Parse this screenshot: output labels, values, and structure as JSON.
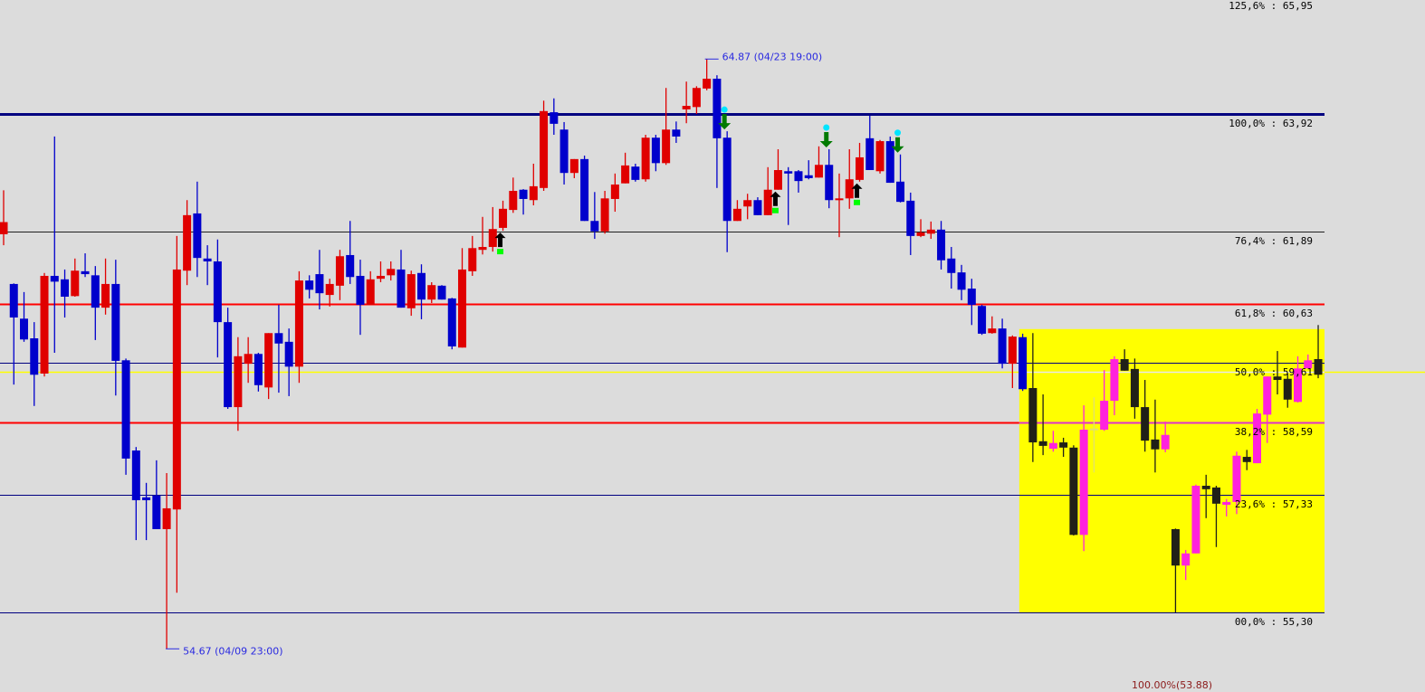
{
  "chart_data": {
    "type": "candlestick",
    "title": "",
    "xlabel": "",
    "ylabel": "",
    "ylim": [
      53.9,
      65.95
    ],
    "grid": false,
    "candle_fields": [
      "open",
      "high",
      "low",
      "close"
    ],
    "candles": [
      [
        61.84,
        62.6,
        61.65,
        62.05
      ],
      [
        60.98,
        60.99,
        59.24,
        60.4
      ],
      [
        60.38,
        60.84,
        59.98,
        60.02
      ],
      [
        60.04,
        60.32,
        58.87,
        59.41
      ],
      [
        59.43,
        61.17,
        59.38,
        61.12
      ],
      [
        61.12,
        63.53,
        59.79,
        61.02
      ],
      [
        61.06,
        61.23,
        60.4,
        60.76
      ],
      [
        60.77,
        61.42,
        60.76,
        61.21
      ],
      [
        61.2,
        61.51,
        61.1,
        61.15
      ],
      [
        61.13,
        61.29,
        60.01,
        60.57
      ],
      [
        60.57,
        61.42,
        60.45,
        60.98
      ],
      [
        60.98,
        61.4,
        59.05,
        59.65
      ],
      [
        59.66,
        59.69,
        57.68,
        57.96
      ],
      [
        58.1,
        58.16,
        56.55,
        57.24
      ],
      [
        57.29,
        57.54,
        56.55,
        57.24
      ],
      [
        57.32,
        57.93,
        56.74,
        56.74
      ],
      [
        56.74,
        57.71,
        54.67,
        57.1
      ],
      [
        57.08,
        61.81,
        55.64,
        61.23
      ],
      [
        61.21,
        62.43,
        60.96,
        62.17
      ],
      [
        62.2,
        62.75,
        61.1,
        61.43
      ],
      [
        61.42,
        61.65,
        60.96,
        61.37
      ],
      [
        61.37,
        61.75,
        59.71,
        60.32
      ],
      [
        60.32,
        60.57,
        58.82,
        58.85
      ],
      [
        58.85,
        60.06,
        58.44,
        59.73
      ],
      [
        59.6,
        60.06,
        59.27,
        59.77
      ],
      [
        59.77,
        59.79,
        59.12,
        59.23
      ],
      [
        59.19,
        60.13,
        58.99,
        60.13
      ],
      [
        60.13,
        60.62,
        59.1,
        59.95
      ],
      [
        59.98,
        60.21,
        59.04,
        59.55
      ],
      [
        59.55,
        61.2,
        59.27,
        61.04
      ],
      [
        61.04,
        61.13,
        60.73,
        60.88
      ],
      [
        61.15,
        61.57,
        60.54,
        60.82
      ],
      [
        60.79,
        61.07,
        60.59,
        60.98
      ],
      [
        60.95,
        61.57,
        60.7,
        61.46
      ],
      [
        61.48,
        62.07,
        60.98,
        61.1
      ],
      [
        61.12,
        61.4,
        60.1,
        60.62
      ],
      [
        60.62,
        61.2,
        60.62,
        61.06
      ],
      [
        61.07,
        61.37,
        61.01,
        61.12
      ],
      [
        61.13,
        61.37,
        61.04,
        61.24
      ],
      [
        61.23,
        61.57,
        60.57,
        60.57
      ],
      [
        60.56,
        61.21,
        60.43,
        61.15
      ],
      [
        61.17,
        61.32,
        60.37,
        60.71
      ],
      [
        60.71,
        61.01,
        60.65,
        60.96
      ],
      [
        60.95,
        60.96,
        60.71,
        60.71
      ],
      [
        60.73,
        60.74,
        59.85,
        59.9
      ],
      [
        59.88,
        61.6,
        59.88,
        61.23
      ],
      [
        61.2,
        61.81,
        61.12,
        61.6
      ],
      [
        61.57,
        62.14,
        61.49,
        61.62
      ],
      [
        61.62,
        62.31,
        61.54,
        61.93
      ],
      [
        61.95,
        62.42,
        61.9,
        62.28
      ],
      [
        62.26,
        62.82,
        62.21,
        62.59
      ],
      [
        62.61,
        62.62,
        62.18,
        62.45
      ],
      [
        62.43,
        63.06,
        62.34,
        62.67
      ],
      [
        62.64,
        64.15,
        62.59,
        63.97
      ],
      [
        63.95,
        64.19,
        63.56,
        63.75
      ],
      [
        63.65,
        63.78,
        62.7,
        62.9
      ],
      [
        62.9,
        63.14,
        62.81,
        63.14
      ],
      [
        63.14,
        63.2,
        62.07,
        62.07
      ],
      [
        62.07,
        62.57,
        61.76,
        61.89
      ],
      [
        61.89,
        62.59,
        61.85,
        62.46
      ],
      [
        62.45,
        62.89,
        62.23,
        62.7
      ],
      [
        62.72,
        63.25,
        62.72,
        63.03
      ],
      [
        63.01,
        63.06,
        62.75,
        62.78
      ],
      [
        62.79,
        63.56,
        62.75,
        63.51
      ],
      [
        63.51,
        63.56,
        62.93,
        63.07
      ],
      [
        63.07,
        64.37,
        63.04,
        63.65
      ],
      [
        63.65,
        63.79,
        63.42,
        63.53
      ],
      [
        64.0,
        64.48,
        63.76,
        64.06
      ],
      [
        64.04,
        64.4,
        63.92,
        64.37
      ],
      [
        64.36,
        64.87,
        64.33,
        64.53
      ],
      [
        64.53,
        64.59,
        62.64,
        63.5
      ],
      [
        63.51,
        63.62,
        61.53,
        62.07
      ],
      [
        62.07,
        62.43,
        62.07,
        62.28
      ],
      [
        62.32,
        62.54,
        62.1,
        62.43
      ],
      [
        62.43,
        62.48,
        62.17,
        62.17
      ],
      [
        62.17,
        63.0,
        62.17,
        62.61
      ],
      [
        62.61,
        63.31,
        62.61,
        62.95
      ],
      [
        62.93,
        63.0,
        62.0,
        62.89
      ],
      [
        62.93,
        62.95,
        62.56,
        62.76
      ],
      [
        62.86,
        63.12,
        62.79,
        62.81
      ],
      [
        62.82,
        63.36,
        62.82,
        63.04
      ],
      [
        63.04,
        63.31,
        62.29,
        62.43
      ],
      [
        62.43,
        62.89,
        61.79,
        62.46
      ],
      [
        62.46,
        63.31,
        62.28,
        62.79
      ],
      [
        62.78,
        63.42,
        62.75,
        63.17
      ],
      [
        63.5,
        63.89,
        62.95,
        62.95
      ],
      [
        62.93,
        63.47,
        62.89,
        63.45
      ],
      [
        63.45,
        63.53,
        62.73,
        62.73
      ],
      [
        62.75,
        63.22,
        62.39,
        62.4
      ],
      [
        62.42,
        62.56,
        61.48,
        61.81
      ],
      [
        61.81,
        62.1,
        61.79,
        61.87
      ],
      [
        61.85,
        62.06,
        61.76,
        61.92
      ],
      [
        61.92,
        62.07,
        61.23,
        61.39
      ],
      [
        61.42,
        61.62,
        60.9,
        61.17
      ],
      [
        61.18,
        61.31,
        60.7,
        60.88
      ],
      [
        60.9,
        61.07,
        60.27,
        60.62
      ],
      [
        60.6,
        60.62,
        60.1,
        60.12
      ],
      [
        60.13,
        60.42,
        60.12,
        60.21
      ],
      [
        60.21,
        60.38,
        59.52,
        59.6
      ],
      [
        59.6,
        60.09,
        59.18,
        60.07
      ],
      [
        60.06,
        60.12,
        59.13,
        59.16
      ],
      [
        59.18,
        60.13,
        57.9,
        58.24
      ],
      [
        58.26,
        59.07,
        58.02,
        58.18
      ],
      [
        58.13,
        58.44,
        58.08,
        58.23
      ],
      [
        58.24,
        58.32,
        57.99,
        58.15
      ],
      [
        58.15,
        58.19,
        56.63,
        56.64
      ],
      [
        56.64,
        58.88,
        56.36,
        58.46
      ],
      [
        58.48,
        59.02,
        57.72,
        58.48
      ],
      [
        58.46,
        59.49,
        58.44,
        58.96
      ],
      [
        58.96,
        59.73,
        58.71,
        59.68
      ],
      [
        59.68,
        59.85,
        59.48,
        59.48
      ],
      [
        59.51,
        59.69,
        58.65,
        58.85
      ],
      [
        58.85,
        59.32,
        58.08,
        58.27
      ],
      [
        58.29,
        58.98,
        57.72,
        58.12
      ],
      [
        58.12,
        58.6,
        58.07,
        58.37
      ],
      [
        56.74,
        56.75,
        55.3,
        56.11
      ],
      [
        56.11,
        56.38,
        55.86,
        56.32
      ],
      [
        56.32,
        57.51,
        56.32,
        57.49
      ],
      [
        57.49,
        57.68,
        56.93,
        57.43
      ],
      [
        57.46,
        57.49,
        56.43,
        57.18
      ],
      [
        57.16,
        57.26,
        56.96,
        57.21
      ],
      [
        57.21,
        58.08,
        57.0,
        58.01
      ],
      [
        57.99,
        58.11,
        57.76,
        57.9
      ],
      [
        57.88,
        58.82,
        57.88,
        58.74
      ],
      [
        58.72,
        59.38,
        58.23,
        59.38
      ],
      [
        59.38,
        59.82,
        59.07,
        59.32
      ],
      [
        59.34,
        59.43,
        58.84,
        58.98
      ],
      [
        58.94,
        59.73,
        58.93,
        59.52
      ],
      [
        59.52,
        59.76,
        59.52,
        59.66
      ],
      [
        59.68,
        60.27,
        59.35,
        59.41
      ]
    ],
    "highlight_zone": {
      "from_index": 101,
      "to_index": 129,
      "low": 55.3,
      "high": 60.2,
      "color": "#ffff00"
    },
    "colors": {
      "up": "#e00000",
      "down": "#0000cc",
      "zone_up": "#ff22dd",
      "zone_down": "#202018",
      "zone_doji": "#e0e070"
    },
    "fib_levels": [
      {
        "label": "125,6% : 65,95",
        "value": 65.95,
        "color": "#000080",
        "show_line": false
      },
      {
        "label": "100,0% : 63,92",
        "value": 63.92,
        "color": "#000080",
        "show_line": true,
        "heavy": true
      },
      {
        "label": "76,4% : 61,89",
        "value": 61.89,
        "color": "#202020",
        "show_line": true
      },
      {
        "label": "61,8% : 60,63",
        "value": 60.63,
        "color": "#ff0000",
        "show_line": true,
        "heavy": true
      },
      {
        "label": "50,0% : 59,61",
        "value": 59.61,
        "color": "#000080",
        "show_line": true
      },
      {
        "label": "38,2% : 58,59",
        "value": 58.59,
        "color": "#ff0000",
        "zone_color": "#dd33cc",
        "show_line": true,
        "heavy": true
      },
      {
        "label": "23,6% : 57,33",
        "value": 57.33,
        "color": "#000080",
        "show_line": true
      },
      {
        "label": "00,0% : 55,30",
        "value": 55.3,
        "color": "#000080",
        "show_line": true
      }
    ],
    "current_price_line": {
      "value": 59.46,
      "color": "#ffff00"
    },
    "extension_label": {
      "text": "100.00%(53.88)",
      "value": 53.88
    },
    "annotations": [
      {
        "text": "64.87 (04/23 19:00)",
        "index": 69,
        "value": 64.87,
        "position": "above"
      },
      {
        "text": "54.67 (04/09 23:00)",
        "index": 16,
        "value": 54.67,
        "position": "below"
      }
    ],
    "signals": [
      {
        "index": 49,
        "type": "buy"
      },
      {
        "index": 71,
        "type": "sell"
      },
      {
        "index": 76,
        "type": "buy"
      },
      {
        "index": 81,
        "type": "sell"
      },
      {
        "index": 84,
        "type": "buy"
      },
      {
        "index": 88,
        "type": "sell"
      }
    ]
  }
}
